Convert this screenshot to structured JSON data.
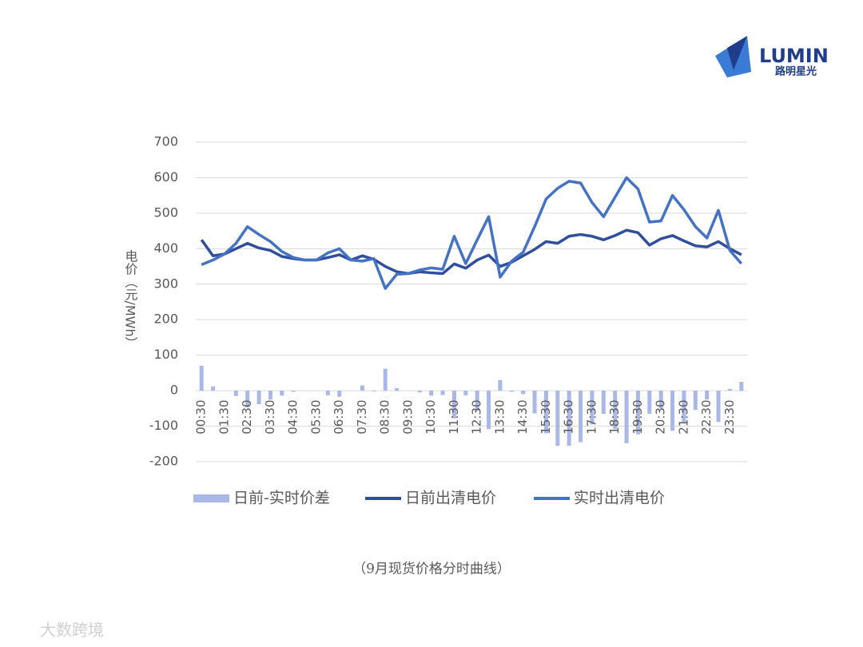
{
  "brand": {
    "name": "LUMIN",
    "subtitle": "路明星光"
  },
  "chart_data": {
    "type": "bar-line",
    "y_label": "电价（元/MWh）",
    "caption": "（9月现货价格分时曲线）",
    "categories": [
      "00:30",
      null,
      "01:30",
      null,
      "02:30",
      null,
      "03:30",
      null,
      "04:30",
      null,
      "05:30",
      null,
      "06:30",
      null,
      "07:30",
      null,
      "08:30",
      null,
      "09:30",
      null,
      "10:30",
      null,
      "11:30",
      null,
      "12:30",
      null,
      "13:30",
      null,
      "14:30",
      null,
      "15:30",
      null,
      "16:30",
      null,
      "17:30",
      null,
      "18:30",
      null,
      "19:30",
      null,
      "20:30",
      null,
      "21:30",
      null,
      "22:30",
      null,
      "23:30",
      null
    ],
    "series": [
      {
        "name": "日前-实时价差",
        "kind": "bar",
        "color": "#a9b8e6",
        "values": [
          70,
          12,
          0,
          -15,
          -47,
          -38,
          -25,
          -14,
          -3,
          0,
          0,
          -13,
          -17,
          0,
          15,
          -2,
          62,
          7,
          0,
          -5,
          -14,
          -12,
          -78,
          -13,
          -57,
          -108,
          30,
          -3,
          -10,
          -64,
          -120,
          -155,
          -155,
          -145,
          -95,
          -65,
          -108,
          -148,
          -123,
          -65,
          -50,
          -113,
          -88,
          -54,
          -25,
          -88,
          5,
          25
        ]
      },
      {
        "name": "日前出清电价",
        "kind": "line",
        "color": "#2f4f9e",
        "values": [
          425,
          380,
          385,
          400,
          415,
          402,
          395,
          378,
          372,
          368,
          368,
          375,
          383,
          368,
          380,
          370,
          350,
          335,
          330,
          335,
          332,
          330,
          357,
          345,
          368,
          382,
          350,
          362,
          380,
          398,
          420,
          415,
          435,
          440,
          435,
          425,
          437,
          452,
          445,
          410,
          428,
          437,
          422,
          408,
          405,
          420,
          400,
          383
        ]
      },
      {
        "name": "实时出清电价",
        "kind": "line",
        "color": "#4472c4",
        "values": [
          355,
          368,
          385,
          415,
          462,
          440,
          420,
          392,
          375,
          368,
          368,
          388,
          400,
          368,
          365,
          372,
          288,
          328,
          330,
          340,
          346,
          342,
          435,
          358,
          425,
          490,
          320,
          365,
          390,
          462,
          540,
          570,
          590,
          585,
          530,
          490,
          545,
          600,
          568,
          475,
          478,
          550,
          510,
          462,
          430,
          508,
          395,
          358
        ]
      }
    ],
    "ylim": [
      -200,
      700
    ],
    "yticks": [
      -200,
      -100,
      0,
      100,
      200,
      300,
      400,
      500,
      600,
      700
    ],
    "grid": true
  },
  "watermark": "大数跨境"
}
